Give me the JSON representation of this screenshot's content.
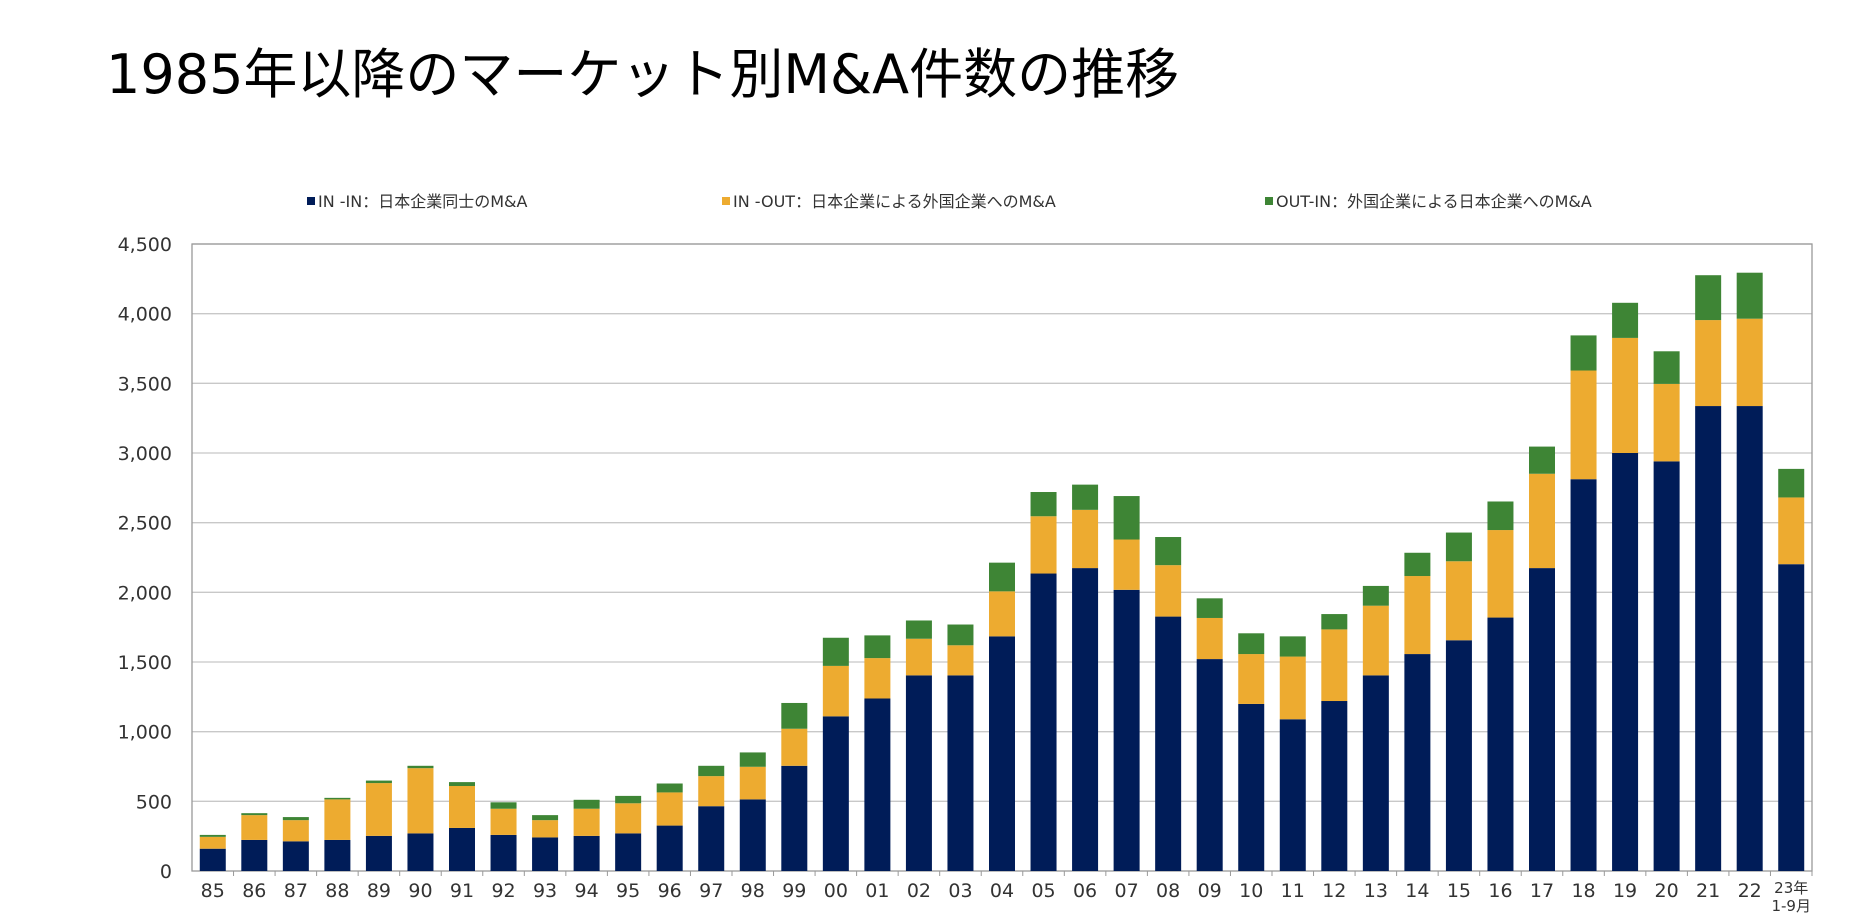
{
  "title": "1985年以降のマーケット別M&A件数の推移",
  "chart_data": {
    "type": "bar",
    "stacked": true,
    "title": "1985年以降のマーケット別M&A件数の推移",
    "xlabel": "",
    "ylabel": "",
    "ylim": [
      0,
      4500
    ],
    "yticks": [
      "0",
      "500",
      "1,000",
      "1,500",
      "2,000",
      "2,500",
      "3,000",
      "3,500",
      "4,000",
      "4,500"
    ],
    "ytick_values": [
      0,
      500,
      1000,
      1500,
      2000,
      2500,
      3000,
      3500,
      4000,
      4500
    ],
    "grid": true,
    "legend_position": "top",
    "categories": [
      "85",
      "86",
      "87",
      "88",
      "89",
      "90",
      "91",
      "92",
      "93",
      "94",
      "95",
      "96",
      "97",
      "98",
      "99",
      "00",
      "01",
      "02",
      "03",
      "04",
      "05",
      "06",
      "07",
      "08",
      "09",
      "10",
      "11",
      "12",
      "13",
      "14",
      "15",
      "16",
      "17",
      "18",
      "19",
      "20",
      "21",
      "22",
      "23年\n1-9月"
    ],
    "series": [
      {
        "name": "IN -IN：日本企業同士のM&A",
        "color": "#001C58",
        "values": [
          160,
          223,
          213,
          223,
          252,
          270,
          309,
          259,
          241,
          252,
          270,
          326,
          465,
          514,
          755,
          1110,
          1238,
          1404,
          1404,
          1684,
          2135,
          2174,
          2018,
          1826,
          1521,
          1199,
          1089,
          1220,
          1404,
          1557,
          1656,
          1819,
          2174,
          2812,
          3000,
          2940,
          3337,
          3337,
          2202
        ]
      },
      {
        "name": "IN -OUT：日本企業による外国企業へのM&A",
        "color": "#EDAB30",
        "values": [
          85,
          178,
          152,
          291,
          379,
          468,
          301,
          188,
          124,
          195,
          216,
          238,
          216,
          234,
          266,
          362,
          290,
          263,
          216,
          323,
          411,
          418,
          361,
          369,
          295,
          358,
          450,
          514,
          500,
          560,
          567,
          628,
          677,
          780,
          826,
          556,
          617,
          627,
          479
        ]
      },
      {
        "name": "OUT-IN：外国企業による日本企業へのM&A",
        "color": "#3E8535",
        "values": [
          14,
          14,
          22,
          11,
          18,
          17,
          28,
          46,
          36,
          64,
          53,
          64,
          74,
          103,
          185,
          202,
          163,
          131,
          149,
          206,
          174,
          181,
          312,
          202,
          141,
          149,
          145,
          110,
          142,
          167,
          206,
          205,
          195,
          252,
          252,
          234,
          322,
          330,
          205
        ]
      }
    ]
  }
}
